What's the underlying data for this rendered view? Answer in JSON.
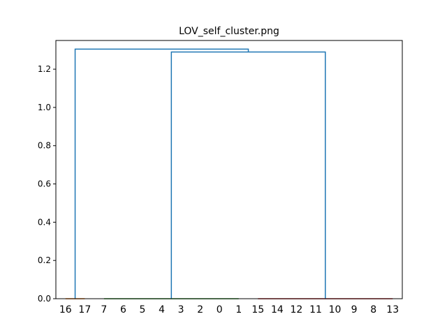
{
  "chart_data": {
    "type": "dendrogram",
    "title": "LOV_self_cluster.png",
    "xlabel": "",
    "ylabel": "",
    "ylim": [
      0,
      1.35
    ],
    "yticks": [
      "0.0",
      "0.2",
      "0.4",
      "0.6",
      "0.8",
      "1.0",
      "1.2"
    ],
    "ytick_values": [
      0,
      0.2,
      0.4,
      0.6,
      0.8,
      1.0,
      1.2
    ],
    "leaves": [
      "16",
      "17",
      "7",
      "6",
      "5",
      "4",
      "3",
      "2",
      "0",
      "1",
      "15",
      "14",
      "12",
      "11",
      "10",
      "9",
      "8",
      "13"
    ],
    "links": [
      {
        "left_leaf_pos": 0.5,
        "right_leaf_pos": 1.5,
        "height": 0.0,
        "left_child_height": 0.0,
        "right_child_height": 0.0,
        "color": "#ff7f0e"
      },
      {
        "left_leaf_pos": 2.5,
        "right_leaf_pos": 9.5,
        "height": 0.0,
        "left_child_height": 0.0,
        "right_child_height": 0.0,
        "color": "#2ca02c"
      },
      {
        "left_leaf_pos": 10.5,
        "right_leaf_pos": 17.5,
        "height": 0.0,
        "left_child_height": 0.0,
        "right_child_height": 0.0,
        "color": "#d62728"
      },
      {
        "left_leaf_pos": 6.0,
        "right_leaf_pos": 14.0,
        "height": 1.29,
        "left_child_height": 0.0,
        "right_child_height": 0.0,
        "color": "#1f77b4"
      },
      {
        "left_leaf_pos": 1.0,
        "right_leaf_pos": 10.0,
        "height": 1.305,
        "left_child_height": 0.0,
        "right_child_height": 1.29,
        "color": "#1f77b4"
      }
    ],
    "colors": {
      "above_threshold": "#1f77b4",
      "cluster_1": "#ff7f0e",
      "cluster_2": "#2ca02c",
      "cluster_3": "#d62728"
    },
    "grid": false,
    "legend": "none"
  }
}
